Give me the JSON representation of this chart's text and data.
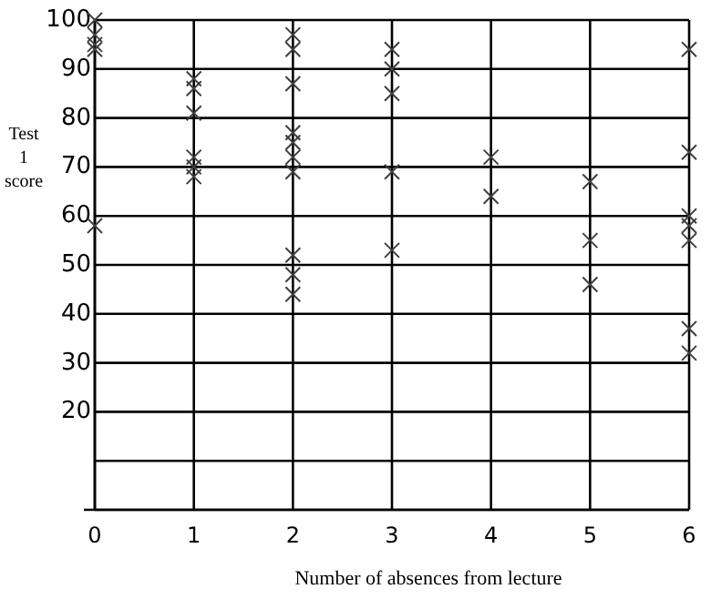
{
  "chart_data": {
    "type": "scatter",
    "xlabel": "Number of absences from lecture",
    "ylabel": "Test 1 score",
    "x": [
      0,
      0,
      0,
      0,
      0,
      1,
      1,
      1,
      1,
      1,
      1,
      2,
      2,
      2,
      2,
      2,
      2,
      2,
      2,
      2,
      2,
      3,
      3,
      3,
      3,
      3,
      4,
      4,
      5,
      5,
      5,
      6,
      6,
      6,
      6,
      6,
      6,
      6
    ],
    "values": [
      100,
      97,
      95,
      94,
      58,
      88,
      86,
      81,
      72,
      70,
      68,
      97,
      94,
      87,
      77,
      75,
      72,
      69,
      52,
      48,
      44,
      94,
      90,
      85,
      69,
      53,
      72,
      64,
      67,
      55,
      46,
      94,
      73,
      60,
      58,
      55,
      37,
      32
    ],
    "color": "#404040",
    "marker": "cross",
    "grid": true,
    "xlim": [
      0,
      6
    ],
    "xticks": [
      0,
      1,
      2,
      3,
      4,
      5,
      6
    ],
    "ylim": [
      0,
      100
    ],
    "yticks": [
      {
        "value": 0,
        "label": null
      },
      {
        "value": 10,
        "label": null
      },
      20,
      30,
      40,
      50,
      60,
      70,
      80,
      90,
      100
    ]
  }
}
